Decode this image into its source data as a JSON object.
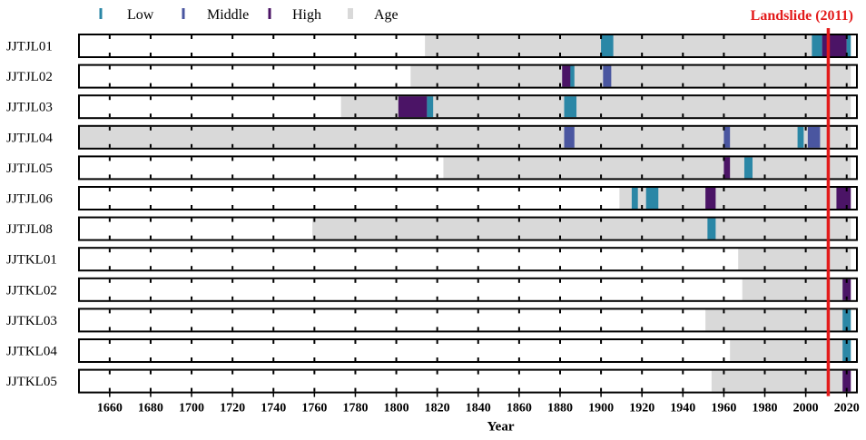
{
  "chart_data": {
    "type": "timeline",
    "title": "",
    "xlabel": "Year",
    "ylabel": "",
    "xlim": [
      1645,
      2025
    ],
    "xticks": [
      1660,
      1680,
      1700,
      1720,
      1740,
      1760,
      1780,
      1800,
      1820,
      1840,
      1860,
      1880,
      1900,
      1920,
      1940,
      1960,
      1980,
      2000,
      2020
    ],
    "legend": {
      "position": "top-left",
      "items": [
        {
          "key": "low",
          "label": "Low",
          "color": "#2b87a6"
        },
        {
          "key": "middle",
          "label": "Middle",
          "color": "#4a56a0"
        },
        {
          "key": "high",
          "label": "High",
          "color": "#4b1466"
        },
        {
          "key": "age",
          "label": "Age",
          "color": "#d9d9d9"
        }
      ]
    },
    "event": {
      "label": "Landslide (2011)",
      "year": 2011,
      "color": "#e31b1b"
    },
    "series": [
      {
        "name": "JJTJL01",
        "age_start": 1814,
        "events": [
          {
            "start": 1900,
            "end": 1906,
            "level": "low"
          },
          {
            "start": 2003,
            "end": 2008,
            "level": "low"
          },
          {
            "start": 2008,
            "end": 2020,
            "level": "high"
          },
          {
            "start": 2020,
            "end": 2022,
            "level": "low"
          }
        ]
      },
      {
        "name": "JJTJL02",
        "age_start": 1807,
        "events": [
          {
            "start": 1881,
            "end": 1886,
            "level": "high"
          },
          {
            "start": 1885,
            "end": 1887,
            "level": "low"
          },
          {
            "start": 1901,
            "end": 1905,
            "level": "middle"
          }
        ]
      },
      {
        "name": "JJTJL03",
        "age_start": 1773,
        "events": [
          {
            "start": 1801,
            "end": 1815,
            "level": "high"
          },
          {
            "start": 1815,
            "end": 1818,
            "level": "low"
          },
          {
            "start": 1882,
            "end": 1888,
            "level": "low"
          }
        ]
      },
      {
        "name": "JJTJL04",
        "age_start": 1645,
        "events": [
          {
            "start": 1882,
            "end": 1887,
            "level": "middle"
          },
          {
            "start": 1960,
            "end": 1963,
            "level": "middle"
          },
          {
            "start": 1996,
            "end": 1999,
            "level": "low"
          },
          {
            "start": 2001,
            "end": 2007,
            "level": "middle"
          }
        ]
      },
      {
        "name": "JJTJL05",
        "age_start": 1823,
        "events": [
          {
            "start": 1960,
            "end": 1963,
            "level": "high"
          },
          {
            "start": 1970,
            "end": 1974,
            "level": "low"
          }
        ]
      },
      {
        "name": "JJTJL06",
        "age_start": 1909,
        "events": [
          {
            "start": 1915,
            "end": 1918,
            "level": "low"
          },
          {
            "start": 1922,
            "end": 1928,
            "level": "low"
          },
          {
            "start": 1951,
            "end": 1956,
            "level": "high"
          },
          {
            "start": 2015,
            "end": 2022,
            "level": "high"
          }
        ]
      },
      {
        "name": "JJTJL08",
        "age_start": 1759,
        "events": [
          {
            "start": 1952,
            "end": 1956,
            "level": "low"
          }
        ]
      },
      {
        "name": "JJTKL01",
        "age_start": 1967,
        "events": []
      },
      {
        "name": "JJTKL02",
        "age_start": 1969,
        "events": [
          {
            "start": 2018,
            "end": 2022,
            "level": "high"
          }
        ]
      },
      {
        "name": "JJTKL03",
        "age_start": 1951,
        "events": [
          {
            "start": 2018,
            "end": 2022,
            "level": "low"
          }
        ]
      },
      {
        "name": "JJTKL04",
        "age_start": 1963,
        "events": [
          {
            "start": 2018,
            "end": 2022,
            "level": "low"
          }
        ]
      },
      {
        "name": "JJTKL05",
        "age_start": 1954,
        "events": [
          {
            "start": 2018,
            "end": 2022,
            "level": "high"
          }
        ]
      }
    ]
  }
}
